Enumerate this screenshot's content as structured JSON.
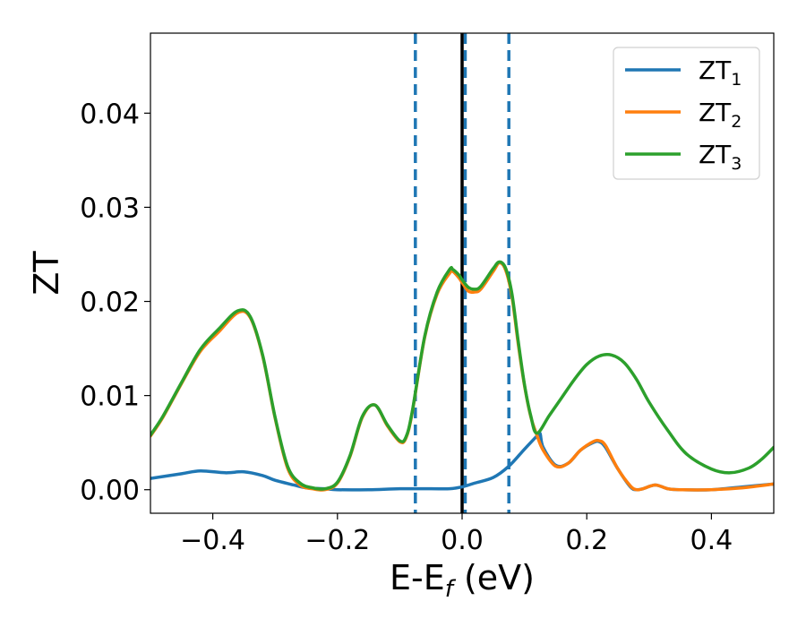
{
  "chart_data": {
    "type": "line",
    "xlabel": "E-E",
    "xlabel_sub": "f",
    "xlabel_unit": " (eV)",
    "ylabel": "ZT",
    "xlim": [
      -0.5,
      0.5
    ],
    "ylim": [
      -0.0025,
      0.0485
    ],
    "xticks": [
      -0.4,
      -0.2,
      0.0,
      0.2,
      0.4
    ],
    "xtick_labels": [
      "−0.4",
      "−0.2",
      "0.0",
      "0.2",
      "0.4"
    ],
    "yticks": [
      0.0,
      0.01,
      0.02,
      0.03,
      0.04
    ],
    "ytick_labels": [
      "0.00",
      "0.01",
      "0.02",
      "0.03",
      "0.04"
    ],
    "grid": false,
    "legend_position": "top-right",
    "vertical_lines": [
      {
        "x": -0.075,
        "style": "dashed",
        "color": "#1f77b4"
      },
      {
        "x": 0.005,
        "style": "dashed",
        "color": "#1f77b4"
      },
      {
        "x": 0.075,
        "style": "dashed",
        "color": "#1f77b4"
      },
      {
        "x": 0.0,
        "style": "solid",
        "color": "#000000"
      }
    ],
    "series": [
      {
        "name": "ZT",
        "name_sub": "1",
        "color": "#1f77b4",
        "x": [
          -0.5,
          -0.45,
          -0.42,
          -0.38,
          -0.35,
          -0.32,
          -0.3,
          -0.27,
          -0.25,
          -0.22,
          -0.2,
          -0.15,
          -0.1,
          -0.05,
          -0.02,
          0.0,
          0.02,
          0.05,
          0.075,
          0.1,
          0.12,
          0.125,
          0.13,
          0.15,
          0.17,
          0.19,
          0.21,
          0.22,
          0.23,
          0.25,
          0.27,
          0.28,
          0.29,
          0.31,
          0.33,
          0.35,
          0.4,
          0.45,
          0.5
        ],
        "y": [
          0.0012,
          0.0017,
          0.002,
          0.0018,
          0.0019,
          0.0015,
          0.001,
          0.0005,
          0.0002,
          0.0001,
          0.0,
          0.0,
          0.0001,
          0.0001,
          0.0001,
          0.0003,
          0.0007,
          0.0013,
          0.0025,
          0.0043,
          0.0057,
          0.006,
          0.0045,
          0.0026,
          0.0028,
          0.0042,
          0.005,
          0.0051,
          0.0045,
          0.0022,
          0.0003,
          0.0,
          0.0001,
          0.0005,
          0.0001,
          0.0,
          0.0,
          0.0003,
          0.0006
        ]
      },
      {
        "name": "ZT",
        "name_sub": "2",
        "color": "#ff7f0e",
        "x": [
          -0.5,
          -0.48,
          -0.45,
          -0.42,
          -0.39,
          -0.36,
          -0.34,
          -0.32,
          -0.3,
          -0.28,
          -0.26,
          -0.24,
          -0.22,
          -0.2,
          -0.18,
          -0.16,
          -0.14,
          -0.12,
          -0.1,
          -0.09,
          -0.08,
          -0.06,
          -0.04,
          -0.02,
          -0.015,
          -0.005,
          0.0,
          0.01,
          0.02,
          0.03,
          0.05,
          0.06,
          0.07,
          0.08,
          0.09,
          0.1,
          0.11,
          0.12,
          0.13,
          0.15,
          0.17,
          0.19,
          0.21,
          0.22,
          0.23,
          0.25,
          0.27,
          0.28,
          0.29,
          0.31,
          0.33,
          0.35,
          0.4,
          0.45,
          0.5
        ],
        "y": [
          0.0057,
          0.0077,
          0.0113,
          0.0147,
          0.0168,
          0.0188,
          0.0183,
          0.0142,
          0.0076,
          0.0023,
          0.0005,
          0.0001,
          0.0,
          0.0007,
          0.0035,
          0.0077,
          0.009,
          0.0068,
          0.0051,
          0.0055,
          0.0082,
          0.0162,
          0.0208,
          0.023,
          0.0232,
          0.0225,
          0.022,
          0.0211,
          0.021,
          0.0213,
          0.0232,
          0.0241,
          0.0233,
          0.0205,
          0.0155,
          0.0111,
          0.0078,
          0.0058,
          0.0042,
          0.0025,
          0.0028,
          0.0042,
          0.0051,
          0.0052,
          0.0047,
          0.0022,
          0.0004,
          0.0,
          0.0001,
          0.0005,
          0.0001,
          0.0,
          0.0,
          0.0002,
          0.0006
        ]
      },
      {
        "name": "ZT",
        "name_sub": "3",
        "color": "#2ca02c",
        "x": [
          -0.5,
          -0.48,
          -0.45,
          -0.42,
          -0.39,
          -0.36,
          -0.34,
          -0.32,
          -0.3,
          -0.28,
          -0.26,
          -0.24,
          -0.22,
          -0.2,
          -0.18,
          -0.16,
          -0.14,
          -0.12,
          -0.1,
          -0.09,
          -0.08,
          -0.06,
          -0.04,
          -0.02,
          -0.015,
          -0.005,
          0.0,
          0.01,
          0.02,
          0.03,
          0.05,
          0.06,
          0.07,
          0.08,
          0.09,
          0.1,
          0.11,
          0.12,
          0.14,
          0.16,
          0.18,
          0.2,
          0.22,
          0.24,
          0.26,
          0.28,
          0.3,
          0.33,
          0.36,
          0.4,
          0.43,
          0.46,
          0.48,
          0.5
        ],
        "y": [
          0.0058,
          0.0078,
          0.0114,
          0.0149,
          0.0171,
          0.019,
          0.0184,
          0.0143,
          0.0077,
          0.0025,
          0.0007,
          0.0002,
          0.0001,
          0.0008,
          0.0036,
          0.0078,
          0.009,
          0.0069,
          0.0052,
          0.0056,
          0.0083,
          0.0163,
          0.021,
          0.0234,
          0.0234,
          0.0228,
          0.0223,
          0.0215,
          0.0213,
          0.0216,
          0.0235,
          0.0242,
          0.0235,
          0.0208,
          0.0158,
          0.0112,
          0.0079,
          0.006,
          0.0079,
          0.0098,
          0.0117,
          0.0133,
          0.0142,
          0.0143,
          0.0135,
          0.0117,
          0.0093,
          0.0063,
          0.0038,
          0.0022,
          0.0018,
          0.0023,
          0.0032,
          0.0045
        ]
      }
    ]
  }
}
